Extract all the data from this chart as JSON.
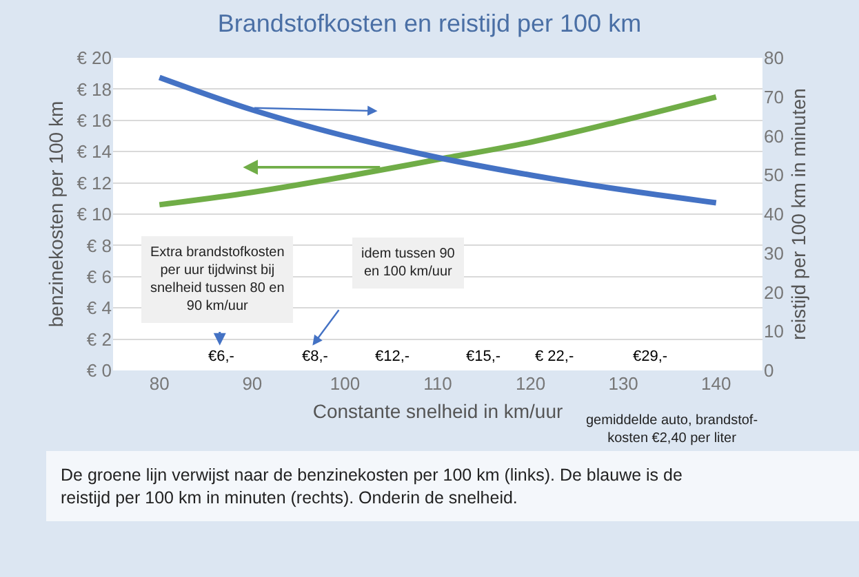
{
  "chart_data": {
    "type": "line",
    "title": "Brandstofkosten en reistijd per 100 km",
    "xlabel": "Constante snelheid in km/uur",
    "ylabel": "benzinekosten per 100 km",
    "y2label": "reistijd per 100 km in minuten",
    "x": [
      80,
      90,
      100,
      110,
      120,
      130,
      140
    ],
    "series": [
      {
        "color": "#70ad47",
        "values": [
          10.6,
          11.4,
          12.4,
          13.5,
          14.6,
          16.0,
          17.5
        ]
      },
      {
        "color": "#4472c4",
        "axis": "y2",
        "values": [
          75,
          66.7,
          60,
          54.5,
          50,
          46.2,
          42.9
        ]
      }
    ],
    "xlim": [
      75,
      145
    ],
    "xticks": [
      80,
      90,
      100,
      110,
      120,
      130,
      140
    ],
    "ylim": [
      0,
      20
    ],
    "yticks": [
      {
        "value": 0,
        "label": "€ 0"
      },
      {
        "value": 2,
        "label": "€ 2"
      },
      {
        "value": 4,
        "label": "€ 4"
      },
      {
        "value": 6,
        "label": "€ 6"
      },
      {
        "value": 8,
        "label": "€ 8"
      },
      {
        "value": 10,
        "label": "€ 10"
      },
      {
        "value": 12,
        "label": "€ 12"
      },
      {
        "value": 14,
        "label": "€ 14"
      },
      {
        "value": 16,
        "label": "€ 16"
      },
      {
        "value": 18,
        "label": "€ 18"
      },
      {
        "value": 20,
        "label": "€ 20"
      }
    ],
    "y2lim": [
      0,
      80
    ],
    "y2ticks": [
      0,
      10,
      20,
      30,
      40,
      50,
      60,
      70,
      80
    ],
    "grid": "y",
    "marker": "none",
    "line_style": "solid",
    "annotations": [
      "Extra brandstofkosten\nper uur tijdwinst bij\nsnelheid tussen 80 en\n90 km/uur",
      "idem tussen 90\nen 100 km/uur",
      "gemiddelde auto, brandstof-\nkosten €2,40 per liter",
      "De groene lijn verwijst naar de benzinekosten per 100 km (links). De blauwe is de\nreistijd per 100 km in minuten (rechts). Onderin de snelheid.",
      "€6,-",
      "€8,-",
      "€12,-",
      "€15,-",
      "€ 22,-",
      "€29,-"
    ]
  }
}
